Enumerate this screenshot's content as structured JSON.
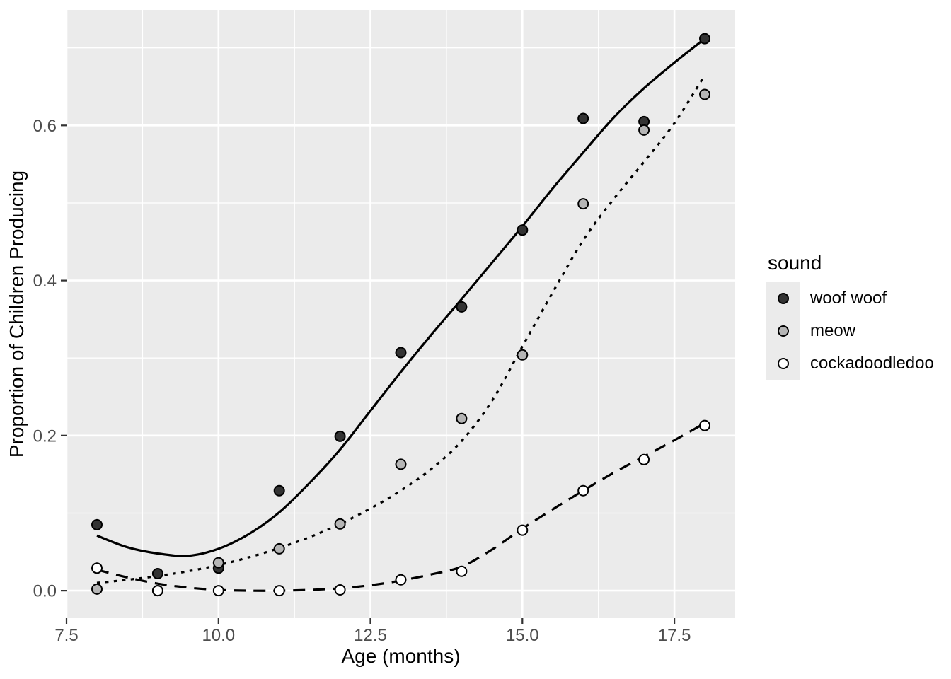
{
  "figure": {
    "background": "#FFFFFF"
  },
  "axes": {
    "x": {
      "title": "Age (months)",
      "range": [
        7.5,
        18.5
      ],
      "major_ticks": [
        7.5,
        10.0,
        12.5,
        15.0,
        17.5
      ],
      "tick_labels": [
        "7.5",
        "10.0",
        "12.5",
        "15.0",
        "17.5"
      ],
      "minor_ticks": [
        8.75,
        11.25,
        13.75,
        16.25
      ]
    },
    "y": {
      "title": "Proportion of Children Producing",
      "range": [
        -0.0355,
        0.749
      ],
      "major_ticks": [
        0.0,
        0.2,
        0.4,
        0.6
      ],
      "tick_labels": [
        "0.0",
        "0.2",
        "0.4",
        "0.6"
      ],
      "minor_ticks": [
        0.1,
        0.3,
        0.5,
        0.7
      ]
    }
  },
  "legend": {
    "title": "sound",
    "position": "right",
    "items": [
      {
        "label": "woof woof",
        "fill": "#333333"
      },
      {
        "label": "meow",
        "fill": "#B5B5B5"
      },
      {
        "label": "cockadoodledoo",
        "fill": "#FFFFFF"
      }
    ]
  },
  "style": {
    "panel_bg": "#EBEBEB",
    "grid_color": "#FFFFFF",
    "tick_color": "#333333",
    "tick_label_color": "#4D4D4D",
    "axis_title_color": "#000000",
    "line_color": "#000000",
    "marker_stroke": "#000000",
    "legend_key_bg": "#EBEBEB"
  },
  "chart_data": {
    "type": "scatter",
    "title": "",
    "xlabel": "Age (months)",
    "ylabel": "Proportion of Children Producing",
    "xlim": [
      7.5,
      18.5
    ],
    "ylim": [
      -0.0355,
      0.749
    ],
    "grid": "major+minor",
    "legend_position": "right",
    "x": [
      8,
      9,
      10,
      11,
      12,
      13,
      14,
      15,
      16,
      17,
      18
    ],
    "series": [
      {
        "name": "woof woof",
        "marker": "filled-circle",
        "marker_fill": "#333333",
        "line_style": "solid",
        "y": [
          0.085,
          0.022,
          0.029,
          0.129,
          0.199,
          0.307,
          0.366,
          0.465,
          0.609,
          0.605,
          0.712
        ],
        "smooth_x": [
          8,
          8.5,
          9,
          9.5,
          10,
          10.5,
          11,
          11.5,
          12,
          12.5,
          13,
          13.5,
          14,
          14.5,
          15,
          15.5,
          16,
          16.5,
          17,
          17.5,
          18
        ],
        "smooth_y": [
          0.071,
          0.056,
          0.048,
          0.045,
          0.054,
          0.073,
          0.101,
          0.139,
          0.182,
          0.232,
          0.282,
          0.33,
          0.376,
          0.423,
          0.47,
          0.519,
          0.565,
          0.61,
          0.648,
          0.681,
          0.712
        ]
      },
      {
        "name": "meow",
        "marker": "filled-circle",
        "marker_fill": "#B5B5B5",
        "line_style": "dotted",
        "y": [
          0.002,
          0.0,
          0.036,
          0.054,
          0.086,
          0.163,
          0.222,
          0.304,
          0.499,
          0.594,
          0.64
        ],
        "smooth_x": [
          8,
          8.5,
          9,
          9.5,
          10,
          10.5,
          11,
          11.5,
          12,
          12.5,
          13,
          13.5,
          14,
          14.5,
          15,
          15.5,
          16,
          16.5,
          17,
          17.5,
          18
        ],
        "smooth_y": [
          0.01,
          0.014,
          0.019,
          0.025,
          0.033,
          0.043,
          0.055,
          0.069,
          0.086,
          0.106,
          0.129,
          0.157,
          0.193,
          0.245,
          0.315,
          0.385,
          0.452,
          0.505,
          0.553,
          0.603,
          0.665
        ]
      },
      {
        "name": "cockadoodledoo",
        "marker": "filled-circle",
        "marker_fill": "#FFFFFF",
        "line_style": "dashed",
        "y": [
          0.029,
          0.0,
          0.0,
          0.0,
          0.001,
          0.014,
          0.025,
          0.078,
          0.129,
          0.169,
          0.213
        ],
        "smooth_x": [
          8,
          8.5,
          9,
          9.5,
          10,
          10.5,
          11,
          11.5,
          12,
          12.5,
          13,
          13.5,
          14,
          14.5,
          15,
          15.5,
          16,
          16.5,
          17,
          17.5,
          18
        ],
        "smooth_y": [
          0.027,
          0.017,
          0.009,
          0.004,
          0.001,
          0.0,
          0.0,
          0.001,
          0.003,
          0.007,
          0.013,
          0.021,
          0.031,
          0.053,
          0.08,
          0.105,
          0.129,
          0.152,
          0.173,
          0.194,
          0.216
        ]
      }
    ]
  }
}
